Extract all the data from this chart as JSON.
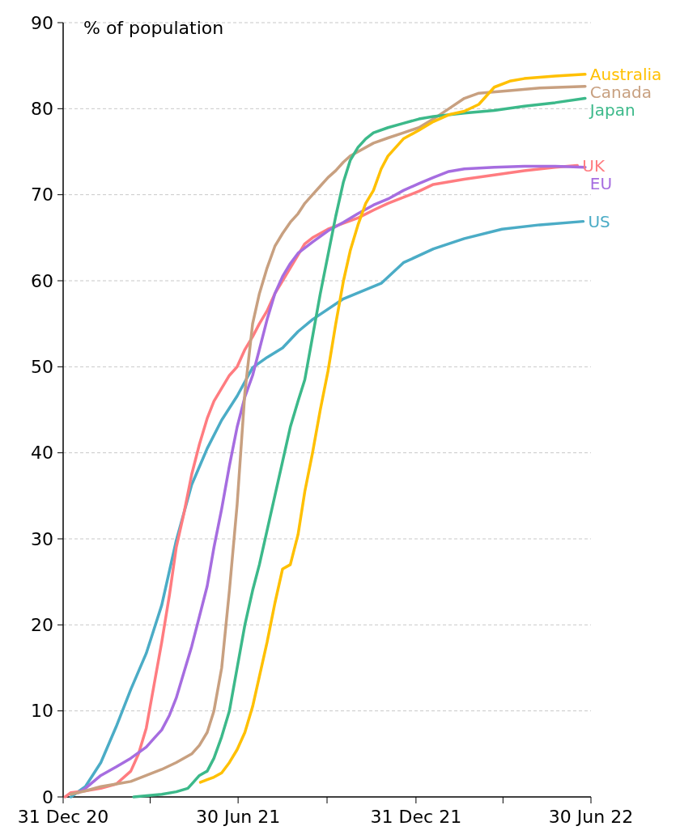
{
  "chart_data": {
    "type": "line",
    "ylabel": "% of population",
    "xlim": [
      "2020-12-31",
      "2022-06-30"
    ],
    "xticks": [
      {
        "value": "2020-12-31",
        "label": "31 Dec 20"
      },
      {
        "value": "2021-03-31",
        "label": null
      },
      {
        "value": "2021-06-30",
        "label": "30 Jun 21"
      },
      {
        "value": "2021-09-30",
        "label": null
      },
      {
        "value": "2021-12-31",
        "label": "31 Dec 21"
      },
      {
        "value": "2022-03-31",
        "label": null
      },
      {
        "value": "2022-06-30",
        "label": "30 Jun 22"
      }
    ],
    "ylim": [
      0,
      90
    ],
    "yticks": [
      0,
      10,
      20,
      30,
      40,
      50,
      60,
      70,
      80,
      90
    ],
    "grid": "y",
    "legend": false,
    "line_style": "solid",
    "marker": "none",
    "series": [
      {
        "name": "US",
        "color": "#4bacc6",
        "x": [
          "2021-01-08",
          "2021-01-23",
          "2021-02-08",
          "2021-02-24",
          "2021-03-11",
          "2021-03-27",
          "2021-04-12",
          "2021-04-27",
          "2021-05-13",
          "2021-05-29",
          "2021-06-13",
          "2021-06-29",
          "2021-07-15",
          "2021-07-30",
          "2021-08-15",
          "2021-08-31",
          "2021-09-15",
          "2021-10-17",
          "2021-11-25",
          "2021-12-18",
          "2022-01-18",
          "2022-02-19",
          "2022-03-30",
          "2022-05-08",
          "2022-06-22"
        ],
        "values": [
          0,
          1.2,
          4,
          8.2,
          12.5,
          16.7,
          22.3,
          29.8,
          36.3,
          40.5,
          43.8,
          46.6,
          49.9,
          51.1,
          52.2,
          54.1,
          55.5,
          57.9,
          59.7,
          62.1,
          63.7,
          64.9,
          66,
          66.5,
          66.9
        ]
      },
      {
        "name": "UK",
        "color": "#ff7c80",
        "x": [
          "2021-01-02",
          "2021-01-08",
          "2021-01-23",
          "2021-02-08",
          "2021-02-24",
          "2021-03-11",
          "2021-03-19",
          "2021-03-27",
          "2021-04-04",
          "2021-04-12",
          "2021-04-20",
          "2021-04-27",
          "2021-05-05",
          "2021-05-13",
          "2021-05-21",
          "2021-05-29",
          "2021-06-05",
          "2021-06-13",
          "2021-06-21",
          "2021-06-29",
          "2021-07-07",
          "2021-07-15",
          "2021-07-22",
          "2021-07-30",
          "2021-08-07",
          "2021-08-15",
          "2021-08-23",
          "2021-08-31",
          "2021-09-07",
          "2021-09-15",
          "2021-10-01",
          "2021-10-17",
          "2021-11-01",
          "2021-11-17",
          "2021-12-02",
          "2021-12-18",
          "2022-01-03",
          "2022-01-18",
          "2022-02-19",
          "2022-03-22",
          "2022-04-22",
          "2022-05-24",
          "2022-06-16"
        ],
        "values": [
          0,
          0.5,
          0.7,
          1,
          1.5,
          3,
          5,
          8,
          13,
          18,
          23.5,
          29,
          33,
          37.5,
          41,
          44,
          46,
          47.5,
          49,
          50,
          52,
          53.5,
          55,
          56.5,
          58.5,
          60,
          61.5,
          63,
          64.3,
          65,
          66,
          66.7,
          67.3,
          68.2,
          69,
          69.7,
          70.4,
          71.2,
          71.8,
          72.3,
          72.8,
          73.2,
          73.4
        ]
      },
      {
        "name": "EU",
        "color": "#a66de0",
        "x": [
          "2021-01-16",
          "2021-01-23",
          "2021-02-08",
          "2021-02-24",
          "2021-03-11",
          "2021-03-27",
          "2021-04-04",
          "2021-04-12",
          "2021-04-20",
          "2021-04-27",
          "2021-05-05",
          "2021-05-13",
          "2021-05-21",
          "2021-05-29",
          "2021-06-05",
          "2021-06-13",
          "2021-06-21",
          "2021-06-29",
          "2021-07-07",
          "2021-07-15",
          "2021-07-22",
          "2021-07-30",
          "2021-08-07",
          "2021-08-15",
          "2021-08-23",
          "2021-08-31",
          "2021-09-15",
          "2021-10-01",
          "2021-10-17",
          "2021-11-01",
          "2021-11-17",
          "2021-12-02",
          "2021-12-18",
          "2022-01-03",
          "2022-01-18",
          "2022-02-03",
          "2022-02-19",
          "2022-03-22",
          "2022-04-22",
          "2022-05-24",
          "2022-06-24"
        ],
        "values": [
          0.5,
          1,
          2.5,
          3.5,
          4.5,
          5.8,
          6.8,
          7.8,
          9.5,
          11.5,
          14.5,
          17.5,
          21,
          24.5,
          29,
          33.5,
          38.5,
          43,
          46.5,
          49,
          52,
          55.5,
          58.5,
          60.5,
          62,
          63.2,
          64.5,
          65.8,
          66.8,
          67.8,
          68.8,
          69.5,
          70.5,
          71.3,
          72,
          72.7,
          73,
          73.2,
          73.3,
          73.3,
          73.2
        ]
      },
      {
        "name": "Canada",
        "color": "#c8a080",
        "x": [
          "2021-01-08",
          "2021-01-23",
          "2021-02-08",
          "2021-02-24",
          "2021-03-11",
          "2021-03-27",
          "2021-04-12",
          "2021-04-27",
          "2021-05-13",
          "2021-05-21",
          "2021-05-29",
          "2021-06-05",
          "2021-06-13",
          "2021-06-21",
          "2021-06-29",
          "2021-07-07",
          "2021-07-15",
          "2021-07-22",
          "2021-07-30",
          "2021-08-07",
          "2021-08-15",
          "2021-08-23",
          "2021-08-31",
          "2021-09-07",
          "2021-09-15",
          "2021-09-23",
          "2021-10-01",
          "2021-10-09",
          "2021-10-17",
          "2021-10-24",
          "2021-11-01",
          "2021-11-17",
          "2021-12-02",
          "2021-12-18",
          "2022-01-03",
          "2022-01-18",
          "2022-02-03",
          "2022-02-19",
          "2022-03-06",
          "2022-04-07",
          "2022-05-08",
          "2022-06-24"
        ],
        "values": [
          0.3,
          0.7,
          1.2,
          1.5,
          1.8,
          2.5,
          3.2,
          4,
          5,
          6,
          7.5,
          10,
          15,
          24,
          34,
          47,
          55,
          58.5,
          61.5,
          64,
          65.5,
          66.8,
          67.8,
          69,
          70,
          71,
          72,
          72.8,
          73.8,
          74.5,
          75,
          76,
          76.6,
          77.2,
          77.8,
          78.8,
          80,
          81.2,
          81.8,
          82.1,
          82.4,
          82.6
        ]
      },
      {
        "name": "Japan",
        "color": "#3cb98a",
        "x": [
          "2021-03-14",
          "2021-04-12",
          "2021-04-27",
          "2021-05-09",
          "2021-05-13",
          "2021-05-21",
          "2021-05-29",
          "2021-06-05",
          "2021-06-13",
          "2021-06-21",
          "2021-06-29",
          "2021-07-07",
          "2021-07-15",
          "2021-07-22",
          "2021-07-30",
          "2021-08-07",
          "2021-08-15",
          "2021-08-23",
          "2021-08-31",
          "2021-09-07",
          "2021-09-15",
          "2021-09-23",
          "2021-10-01",
          "2021-10-09",
          "2021-10-17",
          "2021-10-24",
          "2021-11-01",
          "2021-11-09",
          "2021-11-17",
          "2021-12-02",
          "2021-12-18",
          "2022-01-03",
          "2022-01-18",
          "2022-02-19",
          "2022-03-22",
          "2022-04-22",
          "2022-05-24",
          "2022-06-24"
        ],
        "values": [
          0,
          0.3,
          0.6,
          1,
          1.5,
          2.5,
          3,
          4.5,
          7,
          10,
          15,
          20,
          24,
          27,
          31,
          35,
          39,
          43,
          46,
          48.5,
          53.5,
          58.5,
          63,
          67.5,
          71.5,
          74,
          75.5,
          76.5,
          77.2,
          77.8,
          78.3,
          78.8,
          79.1,
          79.5,
          79.8,
          80.3,
          80.7,
          81.2
        ]
      },
      {
        "name": "Australia",
        "color": "#ffc000",
        "x": [
          "2021-05-22",
          "2021-05-29",
          "2021-06-05",
          "2021-06-13",
          "2021-06-21",
          "2021-06-29",
          "2021-07-07",
          "2021-07-15",
          "2021-07-22",
          "2021-07-30",
          "2021-08-07",
          "2021-08-15",
          "2021-08-23",
          "2021-08-31",
          "2021-09-07",
          "2021-09-15",
          "2021-09-23",
          "2021-10-01",
          "2021-10-09",
          "2021-10-17",
          "2021-10-24",
          "2021-11-01",
          "2021-11-09",
          "2021-11-17",
          "2021-11-25",
          "2021-12-02",
          "2021-12-18",
          "2022-01-03",
          "2022-01-18",
          "2022-02-03",
          "2022-02-19",
          "2022-03-06",
          "2022-03-22",
          "2022-04-07",
          "2022-04-22",
          "2022-05-24",
          "2022-06-24"
        ],
        "values": [
          1.7,
          2,
          2.3,
          2.8,
          4,
          5.5,
          7.5,
          10.5,
          14,
          18,
          22.5,
          26.5,
          27,
          30.5,
          35.5,
          40,
          45,
          49.5,
          55,
          60,
          63.5,
          66.5,
          69,
          70.5,
          73,
          74.5,
          76.5,
          77.5,
          78.5,
          79.3,
          79.7,
          80.5,
          82.5,
          83.2,
          83.5,
          83.8,
          84
        ]
      }
    ]
  }
}
